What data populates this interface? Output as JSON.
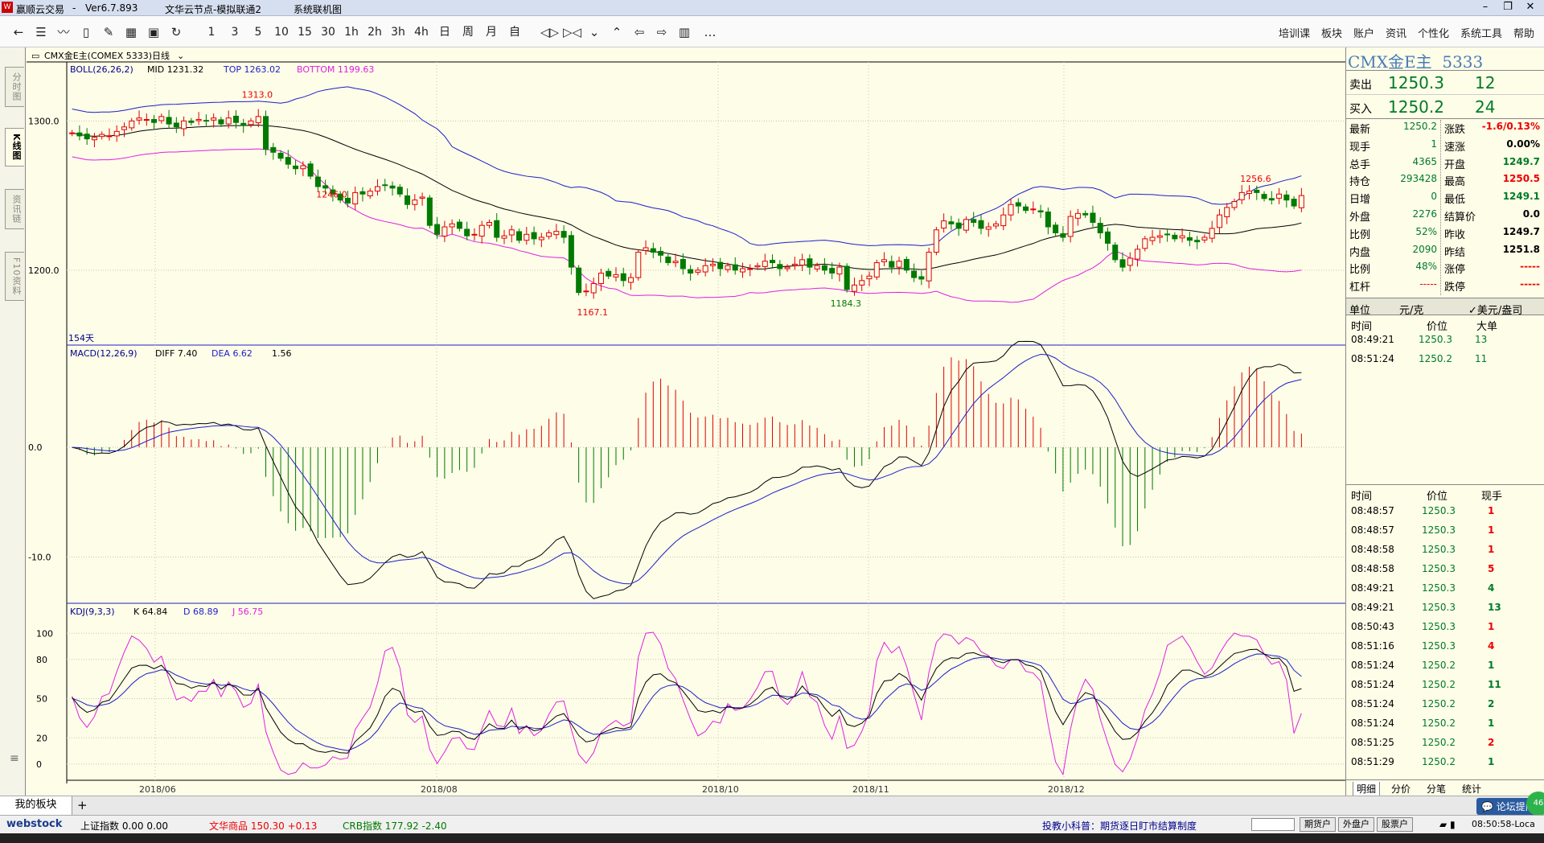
{
  "window": {
    "app_name": "赢顺云交易",
    "version": "Ver6.7.893",
    "node": "文华云节点-模拟联通2",
    "status": "系统联机图"
  },
  "toolbar": {
    "periods": [
      "1",
      "3",
      "5",
      "10",
      "15",
      "30",
      "1h",
      "2h",
      "3h",
      "4h",
      "日",
      "周",
      "月",
      "自"
    ],
    "more": "…",
    "menus": [
      "培训课",
      "板块",
      "账户",
      "资讯",
      "个性化",
      "系统工具",
      "帮助"
    ]
  },
  "sidetabs": [
    "分时图",
    "K线图",
    "资讯链",
    "F10资料"
  ],
  "chart_header": {
    "symbol": "CMX金E主(COMEX 5333)",
    "period": "日线"
  },
  "boll": {
    "label": "BOLL(26,26,2)",
    "mid": "MID 1231.32",
    "top": "TOP 1263.02",
    "bottom": "BOTTOM 1199.63"
  },
  "macd": {
    "label": "MACD(12,26,9)",
    "diff": "DIFF 7.40",
    "dea": "DEA 6.62",
    "val": "1.56"
  },
  "kdj": {
    "label": "KDJ(9,3,3)",
    "k": "K 64.84",
    "d": "D 68.89",
    "j": "J 56.75"
  },
  "days_label": "154天",
  "colors": {
    "up": "#e00000",
    "down": "#007a00",
    "boll_mid": "#000000",
    "boll_top": "#1e1ec8",
    "boll_bot": "#e020e0",
    "panel_bg": "#fdfde8"
  },
  "chart_data": [
    {
      "type": "candlestick",
      "title": "CMX金E主",
      "ylim": [
        1160,
        1318
      ],
      "yticks": [
        1200.0,
        1300.0
      ],
      "x_labels": [
        "2018/06",
        "2018/08",
        "2018/10",
        "2018/11",
        "2018/12"
      ],
      "annotations": [
        {
          "label": "1313.0",
          "value": 1313.0
        },
        {
          "label": "1167.1",
          "value": 1167.1
        },
        {
          "label": "1184.3",
          "value": 1184.3
        },
        {
          "label": "1246.0",
          "value": 1246.0
        },
        {
          "label": "1256.6",
          "value": 1256.6
        }
      ],
      "close": [
        1292,
        1290,
        1288,
        1289,
        1291,
        1290,
        1293,
        1296,
        1300,
        1302,
        1301,
        1299,
        1303,
        1298,
        1296,
        1300,
        1299,
        1301,
        1300,
        1302,
        1298,
        1302,
        1299,
        1297,
        1300,
        1303,
        1281,
        1279,
        1275,
        1271,
        1268,
        1270,
        1263,
        1256,
        1255,
        1251,
        1247,
        1245,
        1252,
        1251,
        1253,
        1256,
        1257,
        1255,
        1251,
        1244,
        1247,
        1249,
        1230,
        1224,
        1229,
        1231,
        1228,
        1223,
        1224,
        1230,
        1232,
        1222,
        1223,
        1227,
        1220,
        1224,
        1221,
        1222,
        1225,
        1226,
        1222,
        1202,
        1185,
        1186,
        1191,
        1198,
        1196,
        1197,
        1193,
        1195,
        1212,
        1215,
        1212,
        1210,
        1205,
        1206,
        1201,
        1198,
        1200,
        1203,
        1204,
        1201,
        1203,
        1200,
        1201,
        1201,
        1203,
        1206,
        1205,
        1201,
        1202,
        1204,
        1207,
        1202,
        1203,
        1200,
        1198,
        1202,
        1187,
        1190,
        1193,
        1196,
        1205,
        1207,
        1202,
        1206,
        1200,
        1195,
        1194,
        1212,
        1227,
        1233,
        1231,
        1228,
        1234,
        1232,
        1228,
        1229,
        1231,
        1237,
        1244,
        1243,
        1240,
        1241,
        1239,
        1229,
        1225,
        1222,
        1236,
        1238,
        1237,
        1232,
        1225,
        1218,
        1207,
        1202,
        1208,
        1214,
        1221,
        1222,
        1223,
        1224,
        1221,
        1223,
        1220,
        1219,
        1222,
        1228,
        1237,
        1242,
        1246,
        1252,
        1253,
        1252,
        1248,
        1247,
        1251,
        1247,
        1243,
        1250
      ]
    },
    {
      "type": "line",
      "title": "MACD",
      "ylim": [
        -14,
        8
      ],
      "yticks": [
        0.0,
        -10.0
      ]
    },
    {
      "type": "line",
      "title": "KDJ",
      "ylim": [
        -10,
        110
      ],
      "yticks": [
        100,
        80,
        50,
        20,
        0
      ]
    }
  ],
  "right": {
    "title": "CMX金E主",
    "code": "5333",
    "sell_label": "卖出",
    "sell_price": "1250.3",
    "sell_vol": "12",
    "buy_label": "买入",
    "buy_price": "1250.2",
    "buy_vol": "24",
    "quote_left": [
      [
        "最新",
        "1250.2"
      ],
      [
        "现手",
        "1"
      ],
      [
        "总手",
        "4365"
      ],
      [
        "持仓",
        "293428"
      ],
      [
        "日增",
        "0"
      ],
      [
        "外盘",
        "2276"
      ],
      [
        "比例",
        "52%"
      ],
      [
        "内盘",
        "2090"
      ],
      [
        "比例",
        "48%"
      ],
      [
        "杠杆",
        "-----"
      ]
    ],
    "quote_right": [
      [
        "涨跌",
        "-1.6/0.13%"
      ],
      [
        "速涨",
        "0.00%"
      ],
      [
        "开盘",
        "1249.7"
      ],
      [
        "最高",
        "1250.5"
      ],
      [
        "最低",
        "1249.1"
      ],
      [
        "结算价",
        "0.0"
      ],
      [
        "昨收",
        "1249.7"
      ],
      [
        "昨结",
        "1251.8"
      ],
      [
        "涨停",
        "-----"
      ],
      [
        "跌停",
        "-----"
      ]
    ],
    "unit_label": "单位",
    "unit_value": "元/克",
    "unit_alt": "✓美元/盎司",
    "big_header": [
      "时间",
      "价位",
      "大单"
    ],
    "big_rows": [
      [
        "08:49:21",
        "1250.3",
        "13"
      ],
      [
        "08:51:24",
        "1250.2",
        "11"
      ]
    ],
    "tick_header": [
      "时间",
      "价位",
      "现手"
    ],
    "tick_rows": [
      [
        "08:48:57",
        "1250.3",
        "1"
      ],
      [
        "08:48:57",
        "1250.3",
        "1"
      ],
      [
        "08:48:58",
        "1250.3",
        "1"
      ],
      [
        "08:48:58",
        "1250.3",
        "5"
      ],
      [
        "08:49:21",
        "1250.3",
        "4"
      ],
      [
        "08:49:21",
        "1250.3",
        "13"
      ],
      [
        "08:50:43",
        "1250.3",
        "1"
      ],
      [
        "08:51:16",
        "1250.3",
        "4"
      ],
      [
        "08:51:24",
        "1250.2",
        "1"
      ],
      [
        "08:51:24",
        "1250.2",
        "11"
      ],
      [
        "08:51:24",
        "1250.2",
        "2"
      ],
      [
        "08:51:24",
        "1250.2",
        "1"
      ],
      [
        "08:51:25",
        "1250.2",
        "2"
      ],
      [
        "08:51:29",
        "1250.2",
        "1"
      ]
    ],
    "tabs": [
      "明细",
      "分价",
      "分笔",
      "统计"
    ]
  },
  "bottom": {
    "block_tab": "我的板块",
    "add": "+",
    "forum": "论坛提问"
  },
  "status": {
    "logo": "webstock",
    "items": [
      [
        "上证指数",
        "0.00",
        "0.00"
      ],
      [
        "文华商品",
        "150.30",
        "+0.13"
      ],
      [
        "CRB指数",
        "177.92",
        "-2.40"
      ]
    ],
    "tip": "投教小科普：期货逐日盯市结算制度",
    "btns": [
      "期货户",
      "外盘户",
      "股票户"
    ],
    "time": "08:50:58-Loca"
  }
}
